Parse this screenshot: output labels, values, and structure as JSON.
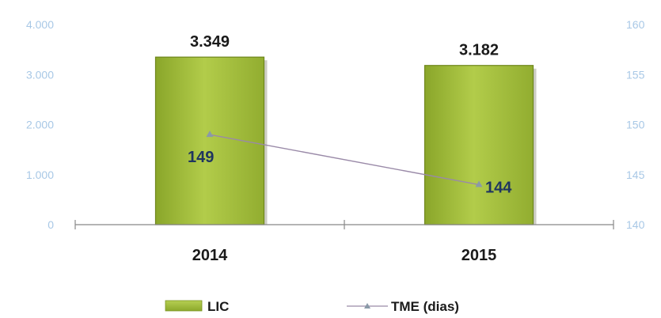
{
  "chart_data": {
    "type": "bar",
    "categories": [
      "2014",
      "2015"
    ],
    "left_axis": {
      "ticks": [
        "0",
        "1.000",
        "2.000",
        "3.000",
        "4.000"
      ],
      "ylim": [
        0,
        4000
      ]
    },
    "right_axis": {
      "ticks": [
        "140",
        "145",
        "150",
        "155",
        "160"
      ],
      "ylim": [
        140,
        160
      ]
    },
    "series": [
      {
        "name": "LIC",
        "type": "bar",
        "axis": "left",
        "values": [
          3349,
          3182
        ],
        "labels": [
          "3.349",
          "3.182"
        ],
        "color": "#a3bf3a"
      },
      {
        "name": "TME (dias)",
        "type": "line",
        "axis": "right",
        "values": [
          149,
          144
        ],
        "labels": [
          "149",
          "144"
        ],
        "color": "#9a8aa8"
      }
    ],
    "legend_position": "bottom"
  }
}
